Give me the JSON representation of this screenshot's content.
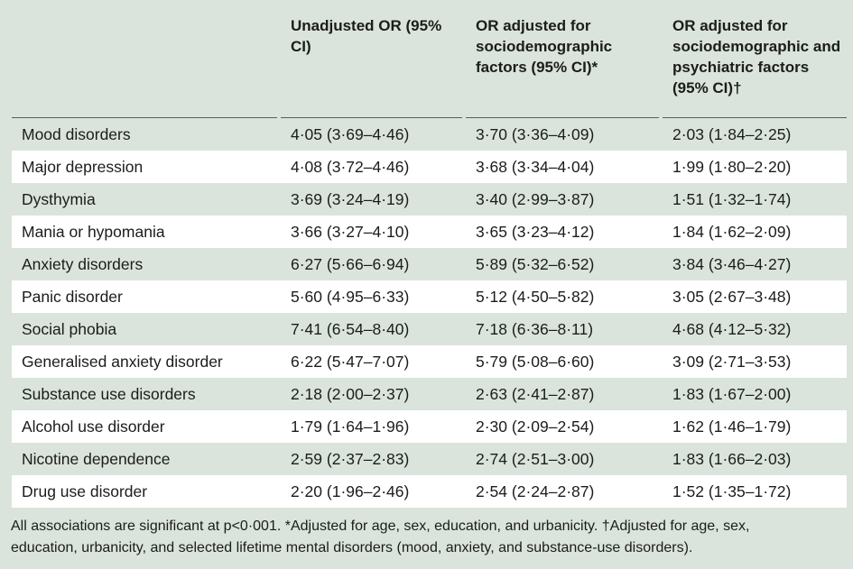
{
  "table": {
    "columns": [
      "",
      "Unadjusted OR (95% CI)",
      "OR adjusted for sociodemographic factors (95% CI)*",
      "OR adjusted for sociodemographic and psychiatric factors (95% CI)†"
    ],
    "rows": [
      {
        "label": "Mood disorders",
        "unadjusted": "4·05 (3·69–4·46)",
        "adj_sociodemographic": "3·70 (3·36–4·09)",
        "adj_socio_psychiatric": "2·03 (1·84–2·25)"
      },
      {
        "label": "Major depression",
        "unadjusted": "4·08 (3·72–4·46)",
        "adj_sociodemographic": "3·68 (3·34–4·04)",
        "adj_socio_psychiatric": "1·99 (1·80–2·20)"
      },
      {
        "label": "Dysthymia",
        "unadjusted": "3·69 (3·24–4·19)",
        "adj_sociodemographic": "3·40 (2·99–3·87)",
        "adj_socio_psychiatric": "1·51 (1·32–1·74)"
      },
      {
        "label": "Mania or hypomania",
        "unadjusted": "3·66 (3·27–4·10)",
        "adj_sociodemographic": "3·65 (3·23–4·12)",
        "adj_socio_psychiatric": "1·84 (1·62–2·09)"
      },
      {
        "label": "Anxiety disorders",
        "unadjusted": "6·27 (5·66–6·94)",
        "adj_sociodemographic": "5·89 (5·32–6·52)",
        "adj_socio_psychiatric": "3·84 (3·46–4·27)"
      },
      {
        "label": "Panic disorder",
        "unadjusted": "5·60 (4·95–6·33)",
        "adj_sociodemographic": "5·12 (4·50–5·82)",
        "adj_socio_psychiatric": "3·05 (2·67–3·48)"
      },
      {
        "label": "Social phobia",
        "unadjusted": "7·41 (6·54–8·40)",
        "adj_sociodemographic": "7·18 (6·36–8·11)",
        "adj_socio_psychiatric": "4·68 (4·12–5·32)"
      },
      {
        "label": "Generalised anxiety disorder",
        "unadjusted": "6·22 (5·47–7·07)",
        "adj_sociodemographic": "5·79 (5·08–6·60)",
        "adj_socio_psychiatric": "3·09 (2·71–3·53)"
      },
      {
        "label": "Substance use disorders",
        "unadjusted": "2·18 (2·00–2·37)",
        "adj_sociodemographic": "2·63 (2·41–2·87)",
        "adj_socio_psychiatric": "1·83 (1·67–2·00)"
      },
      {
        "label": "Alcohol use disorder",
        "unadjusted": "1·79 (1·64–1·96)",
        "adj_sociodemographic": "2·30 (2·09–2·54)",
        "adj_socio_psychiatric": "1·62 (1·46–1·79)"
      },
      {
        "label": "Nicotine dependence",
        "unadjusted": "2·59 (2·37–2·83)",
        "adj_sociodemographic": "2·74 (2·51–3·00)",
        "adj_socio_psychiatric": "1·83 (1·66–2·03)"
      },
      {
        "label": "Drug use disorder",
        "unadjusted": "2·20 (1·96–2·46)",
        "adj_sociodemographic": "2·54 (2·24–2·87)",
        "adj_socio_psychiatric": "1·52 (1·35–1·72)"
      }
    ],
    "footnote": "All associations are significant at p<0·001. *Adjusted for age, sex, education, and urbanicity. †Adjusted for age, sex, education, urbanicity, and selected lifetime mental disorders (mood, anxiety, and substance-use disorders)."
  },
  "colors": {
    "background": "#dae4dc",
    "alt_row": "#ffffff",
    "header_rule": "#585c58",
    "text": "#1c1c1a"
  }
}
